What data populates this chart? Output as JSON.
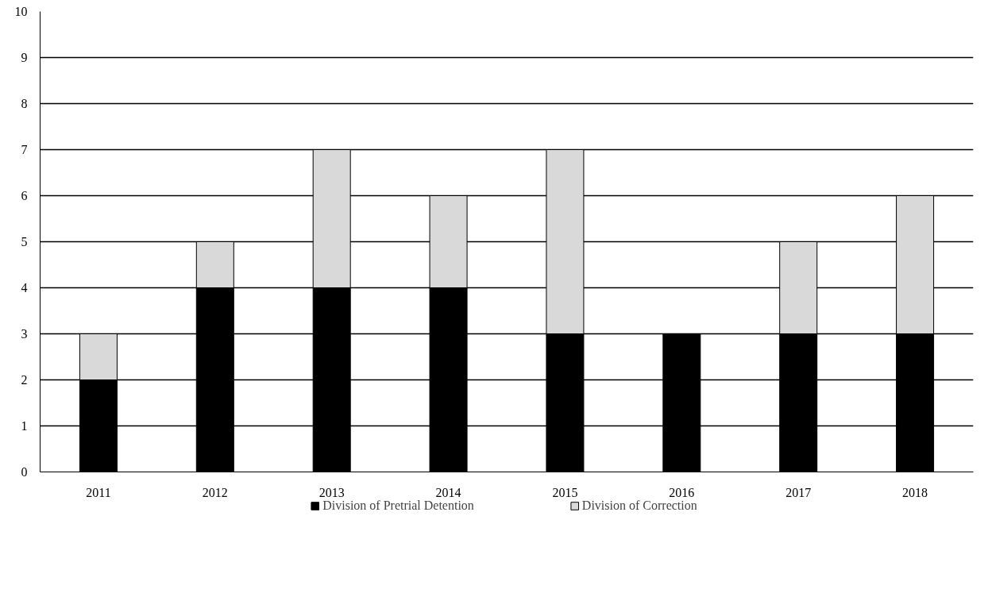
{
  "chart_data": {
    "type": "bar",
    "stacked": true,
    "categories": [
      "2011",
      "2012",
      "2013",
      "2014",
      "2015",
      "2016",
      "2017",
      "2018"
    ],
    "series": [
      {
        "name": "Division of Pretrial Detention",
        "color": "#000000",
        "values": [
          2,
          4,
          4,
          4,
          3,
          3,
          3,
          3
        ]
      },
      {
        "name": "Division of Correction",
        "color": "#d9d9d9",
        "values": [
          1,
          1,
          3,
          2,
          4,
          null,
          2,
          3
        ]
      }
    ],
    "ylim": [
      0,
      10
    ],
    "yticks": [
      0,
      1,
      2,
      3,
      4,
      5,
      6,
      7,
      8,
      9,
      10
    ],
    "grid": "y",
    "legend": "bottom"
  }
}
